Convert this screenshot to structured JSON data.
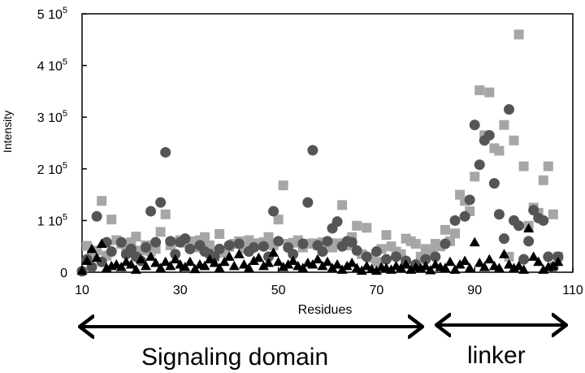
{
  "chart_data": {
    "type": "scatter",
    "ylabel": "Intensity",
    "xlabel": "Residues",
    "xlim": [
      10,
      110
    ],
    "ylim": [
      0,
      500000
    ],
    "x_ticks": [
      10,
      30,
      50,
      70,
      90,
      110
    ],
    "x_tick_labels": [
      "10",
      "30",
      "50",
      "70",
      "90",
      "110"
    ],
    "y_ticks": [
      0,
      100000,
      200000,
      300000,
      400000,
      500000
    ],
    "y_tick_labels": [
      {
        "mant": "0",
        "exp": ""
      },
      {
        "mant": "1 10",
        "exp": "5"
      },
      {
        "mant": "2 10",
        "exp": "5"
      },
      {
        "mant": "3 10",
        "exp": "5"
      },
      {
        "mant": "4 10",
        "exp": "5"
      },
      {
        "mant": "5 10",
        "exp": "5"
      }
    ],
    "grid": false,
    "series": [
      {
        "marker": "square",
        "color": "#a6a6a6",
        "points": [
          [
            11,
            51000
          ],
          [
            12,
            35000
          ],
          [
            13,
            42000
          ],
          [
            14,
            138000
          ],
          [
            15,
            32000
          ],
          [
            16,
            102000
          ],
          [
            17,
            62000
          ],
          [
            18,
            55000
          ],
          [
            19,
            48000
          ],
          [
            20,
            58000
          ],
          [
            21,
            69000
          ],
          [
            22,
            42000
          ],
          [
            23,
            52000
          ],
          [
            24,
            40000
          ],
          [
            25,
            45000
          ],
          [
            26,
            78000
          ],
          [
            27,
            112000
          ],
          [
            28,
            52000
          ],
          [
            29,
            58000
          ],
          [
            30,
            62000
          ],
          [
            31,
            57000
          ],
          [
            32,
            60000
          ],
          [
            33,
            48000
          ],
          [
            34,
            62000
          ],
          [
            35,
            68000
          ],
          [
            36,
            52000
          ],
          [
            37,
            30000
          ],
          [
            38,
            74000
          ],
          [
            39,
            38000
          ],
          [
            40,
            49000
          ],
          [
            41,
            55000
          ],
          [
            42,
            60000
          ],
          [
            43,
            45000
          ],
          [
            44,
            62000
          ],
          [
            45,
            56000
          ],
          [
            46,
            52000
          ],
          [
            47,
            58000
          ],
          [
            48,
            68000
          ],
          [
            49,
            52000
          ],
          [
            50,
            102000
          ],
          [
            51,
            168000
          ],
          [
            52,
            55000
          ],
          [
            53,
            57000
          ],
          [
            54,
            62000
          ],
          [
            55,
            48000
          ],
          [
            56,
            55000
          ],
          [
            57,
            56000
          ],
          [
            58,
            52000
          ],
          [
            59,
            58000
          ],
          [
            60,
            56000
          ],
          [
            61,
            48000
          ],
          [
            62,
            56000
          ],
          [
            63,
            130000
          ],
          [
            64,
            52000
          ],
          [
            65,
            68000
          ],
          [
            66,
            90000
          ],
          [
            67,
            35000
          ],
          [
            68,
            86000
          ],
          [
            69,
            28000
          ],
          [
            70,
            20000
          ],
          [
            71,
            45000
          ],
          [
            72,
            72000
          ],
          [
            73,
            50000
          ],
          [
            74,
            40000
          ],
          [
            75,
            35000
          ],
          [
            76,
            65000
          ],
          [
            77,
            60000
          ],
          [
            78,
            55000
          ],
          [
            79,
            30000
          ],
          [
            80,
            45000
          ],
          [
            81,
            40000
          ],
          [
            82,
            55000
          ],
          [
            83,
            50000
          ],
          [
            84,
            82000
          ],
          [
            85,
            60000
          ],
          [
            86,
            75000
          ],
          [
            87,
            150000
          ],
          [
            88,
            138000
          ],
          [
            89,
            118000
          ],
          [
            90,
            185000
          ],
          [
            91,
            352000
          ],
          [
            92,
            265000
          ],
          [
            93,
            348000
          ],
          [
            94,
            240000
          ],
          [
            95,
            235000
          ],
          [
            96,
            285000
          ],
          [
            97,
            30000
          ],
          [
            98,
            255000
          ],
          [
            99,
            460000
          ],
          [
            100,
            205000
          ],
          [
            101,
            90000
          ],
          [
            102,
            125000
          ],
          [
            103,
            115000
          ],
          [
            104,
            178000
          ],
          [
            105,
            205000
          ],
          [
            106,
            112000
          ],
          [
            107,
            30000
          ]
        ]
      },
      {
        "marker": "circle",
        "color": "#555555",
        "points": [
          [
            10,
            2000
          ],
          [
            11,
            25000
          ],
          [
            12,
            10000
          ],
          [
            13,
            108000
          ],
          [
            14,
            20000
          ],
          [
            15,
            58000
          ],
          [
            16,
            40000
          ],
          [
            18,
            58000
          ],
          [
            19,
            35000
          ],
          [
            20,
            45000
          ],
          [
            21,
            30000
          ],
          [
            22,
            22000
          ],
          [
            23,
            48000
          ],
          [
            24,
            118000
          ],
          [
            25,
            58000
          ],
          [
            26,
            135000
          ],
          [
            27,
            232000
          ],
          [
            28,
            60000
          ],
          [
            29,
            35000
          ],
          [
            30,
            58000
          ],
          [
            31,
            65000
          ],
          [
            32,
            45000
          ],
          [
            34,
            52000
          ],
          [
            35,
            40000
          ],
          [
            36,
            35000
          ],
          [
            37,
            30000
          ],
          [
            38,
            45000
          ],
          [
            40,
            52000
          ],
          [
            42,
            55000
          ],
          [
            44,
            40000
          ],
          [
            45,
            48000
          ],
          [
            47,
            50000
          ],
          [
            48,
            30000
          ],
          [
            49,
            118000
          ],
          [
            50,
            60000
          ],
          [
            52,
            48000
          ],
          [
            53,
            35000
          ],
          [
            55,
            55000
          ],
          [
            56,
            135000
          ],
          [
            57,
            236000
          ],
          [
            58,
            52000
          ],
          [
            59,
            40000
          ],
          [
            60,
            60000
          ],
          [
            61,
            85000
          ],
          [
            62,
            98000
          ],
          [
            63,
            50000
          ],
          [
            64,
            60000
          ],
          [
            65,
            58000
          ],
          [
            66,
            42000
          ],
          [
            68,
            30000
          ],
          [
            70,
            40000
          ],
          [
            72,
            25000
          ],
          [
            74,
            30000
          ],
          [
            76,
            22000
          ],
          [
            78,
            15000
          ],
          [
            80,
            25000
          ],
          [
            82,
            30000
          ],
          [
            84,
            55000
          ],
          [
            86,
            100000
          ],
          [
            88,
            108000
          ],
          [
            89,
            140000
          ],
          [
            90,
            285000
          ],
          [
            91,
            208000
          ],
          [
            92,
            255000
          ],
          [
            93,
            265000
          ],
          [
            94,
            172000
          ],
          [
            95,
            112000
          ],
          [
            96,
            65000
          ],
          [
            97,
            315000
          ],
          [
            98,
            100000
          ],
          [
            99,
            90000
          ],
          [
            100,
            25000
          ],
          [
            101,
            60000
          ],
          [
            102,
            120000
          ],
          [
            103,
            105000
          ],
          [
            104,
            100000
          ],
          [
            105,
            30000
          ],
          [
            106,
            10000
          ],
          [
            107,
            30000
          ]
        ]
      },
      {
        "marker": "triangle",
        "color": "#000000",
        "points": [
          [
            10,
            3000
          ],
          [
            11,
            22000
          ],
          [
            12,
            45000
          ],
          [
            13,
            28000
          ],
          [
            14,
            55000
          ],
          [
            15,
            8000
          ],
          [
            16,
            12000
          ],
          [
            17,
            15000
          ],
          [
            18,
            10000
          ],
          [
            19,
            20000
          ],
          [
            20,
            15000
          ],
          [
            21,
            5000
          ],
          [
            22,
            25000
          ],
          [
            23,
            12000
          ],
          [
            24,
            30000
          ],
          [
            25,
            18000
          ],
          [
            26,
            8000
          ],
          [
            27,
            20000
          ],
          [
            28,
            12000
          ],
          [
            29,
            25000
          ],
          [
            30,
            15000
          ],
          [
            31,
            10000
          ],
          [
            32,
            20000
          ],
          [
            33,
            6000
          ],
          [
            34,
            15000
          ],
          [
            35,
            12000
          ],
          [
            36,
            25000
          ],
          [
            37,
            18000
          ],
          [
            38,
            8000
          ],
          [
            39,
            20000
          ],
          [
            40,
            30000
          ],
          [
            41,
            12000
          ],
          [
            42,
            35000
          ],
          [
            43,
            15000
          ],
          [
            44,
            8000
          ],
          [
            45,
            22000
          ],
          [
            46,
            28000
          ],
          [
            47,
            12000
          ],
          [
            48,
            18000
          ],
          [
            49,
            38000
          ],
          [
            50,
            20000
          ],
          [
            51,
            10000
          ],
          [
            52,
            15000
          ],
          [
            53,
            22000
          ],
          [
            54,
            12000
          ],
          [
            55,
            8000
          ],
          [
            56,
            18000
          ],
          [
            57,
            15000
          ],
          [
            58,
            25000
          ],
          [
            59,
            12000
          ],
          [
            60,
            20000
          ],
          [
            61,
            8000
          ],
          [
            62,
            15000
          ],
          [
            63,
            5000
          ],
          [
            64,
            12000
          ],
          [
            65,
            18000
          ],
          [
            66,
            8000
          ],
          [
            67,
            3000
          ],
          [
            68,
            12000
          ],
          [
            69,
            6000
          ],
          [
            70,
            3000
          ],
          [
            71,
            10000
          ],
          [
            72,
            8000
          ],
          [
            73,
            5000
          ],
          [
            74,
            12000
          ],
          [
            75,
            8000
          ],
          [
            76,
            15000
          ],
          [
            77,
            5000
          ],
          [
            78,
            10000
          ],
          [
            79,
            8000
          ],
          [
            80,
            12000
          ],
          [
            81,
            4000
          ],
          [
            82,
            15000
          ],
          [
            83,
            10000
          ],
          [
            84,
            8000
          ],
          [
            85,
            20000
          ],
          [
            86,
            5000
          ],
          [
            87,
            15000
          ],
          [
            88,
            22000
          ],
          [
            89,
            8000
          ],
          [
            90,
            58000
          ],
          [
            91,
            18000
          ],
          [
            92,
            10000
          ],
          [
            93,
            25000
          ],
          [
            94,
            12000
          ],
          [
            95,
            8000
          ],
          [
            96,
            35000
          ],
          [
            97,
            15000
          ],
          [
            98,
            8000
          ],
          [
            99,
            12000
          ],
          [
            100,
            5000
          ],
          [
            101,
            85000
          ],
          [
            102,
            30000
          ],
          [
            103,
            20000
          ],
          [
            104,
            5000
          ],
          [
            105,
            10000
          ],
          [
            106,
            12000
          ],
          [
            107,
            20000
          ]
        ]
      }
    ]
  },
  "annotations": {
    "domains": [
      {
        "label": "Signaling domain",
        "from": 10,
        "to": 80
      },
      {
        "label": "linker",
        "from": 81,
        "to": 110
      }
    ]
  }
}
